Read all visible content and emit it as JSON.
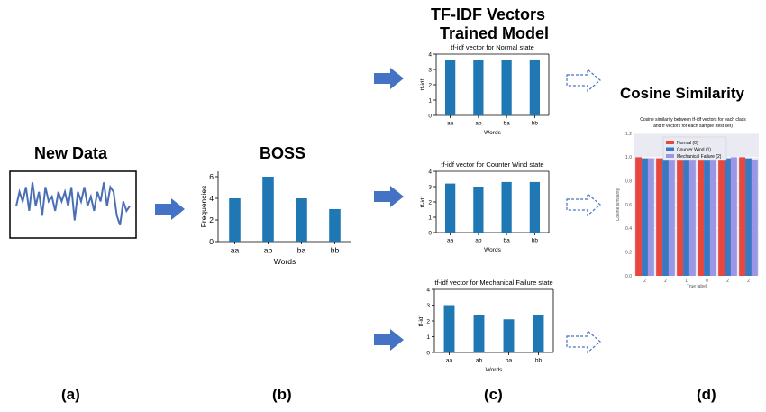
{
  "headings": {
    "new_data": "New Data",
    "boss": "BOSS",
    "tfidf_line1": "TF-IDF Vectors",
    "tfidf_line2": "Trained Model",
    "cosine": "Cosine Similarity"
  },
  "panel_labels": [
    "(a)",
    "(b)",
    "(c)",
    "(d)"
  ],
  "colors": {
    "arrow_fill": "#4472c4",
    "bar": "#1f77b4",
    "dashed_arrow": "#4472c4",
    "series_normal": "#e8473e",
    "series_counter": "#3b78c2",
    "series_mechanical": "#9b97e6"
  },
  "chart_data": [
    {
      "id": "new-data-signal",
      "type": "line",
      "values": [
        5,
        8,
        6,
        9,
        4,
        10,
        5,
        8,
        3,
        9,
        6,
        7,
        4,
        8,
        6,
        8,
        5,
        9,
        2,
        8,
        6,
        9,
        5,
        7,
        4,
        8,
        6,
        10,
        5,
        9,
        8,
        3,
        1,
        6,
        4,
        5
      ],
      "ylim": [
        0,
        11
      ]
    },
    {
      "id": "boss",
      "type": "bar",
      "title": "",
      "categories": [
        "aa",
        "ab",
        "ba",
        "bb"
      ],
      "values": [
        4,
        6,
        4,
        3
      ],
      "xlabel": "Words",
      "ylabel": "Frequencies",
      "ylim": [
        0,
        6.5
      ],
      "yticks": [
        "0",
        "2",
        "4",
        "6"
      ]
    },
    {
      "id": "tfidf-normal",
      "type": "bar",
      "title": "tf-idf vector for Normal state",
      "categories": [
        "aa",
        "ab",
        "ba",
        "bb"
      ],
      "values": [
        3.6,
        3.6,
        3.6,
        3.65
      ],
      "xlabel": "Words",
      "ylabel": "tf-idf",
      "ylim": [
        0,
        4
      ],
      "yticks": [
        "0",
        "1",
        "2",
        "3",
        "4"
      ]
    },
    {
      "id": "tfidf-counter",
      "type": "bar",
      "title": "tf-idf vector for Counter Wind state",
      "categories": [
        "aa",
        "ab",
        "ba",
        "bb"
      ],
      "values": [
        3.2,
        3.0,
        3.3,
        3.3
      ],
      "xlabel": "Words",
      "ylabel": "tf-idf",
      "ylim": [
        0,
        4
      ],
      "yticks": [
        "0",
        "1",
        "2",
        "3",
        "4"
      ]
    },
    {
      "id": "tfidf-mechanical",
      "type": "bar",
      "title": "tf-idf vector for Mechanical Failure state",
      "categories": [
        "aa",
        "ab",
        "ba",
        "bb"
      ],
      "values": [
        3.0,
        2.4,
        2.1,
        2.4
      ],
      "xlabel": "Words",
      "ylabel": "tf-idf",
      "ylim": [
        0,
        4
      ],
      "yticks": [
        "0",
        "1",
        "2",
        "3",
        "4"
      ]
    },
    {
      "id": "cosine",
      "type": "bar",
      "title_lines": [
        "Cosine similarity between tf-idf vectors for each class",
        "and tf vectors for each sample (test set)"
      ],
      "categories": [
        "2",
        "2",
        "1",
        "0",
        "2",
        "2"
      ],
      "xlabel": "True label",
      "ylabel": "Cosine similarity",
      "ylim": [
        0,
        1.2
      ],
      "yticks": [
        "0.0",
        "0.2",
        "0.4",
        "0.6",
        "0.8",
        "1.0",
        "1.2"
      ],
      "grid": true,
      "legend_position": "top-center",
      "series": [
        {
          "name": "Normal (0)",
          "values": [
            1.0,
            0.99,
            0.99,
            1.0,
            0.99,
            1.0
          ]
        },
        {
          "name": "Counter Wind (1)",
          "values": [
            0.99,
            0.99,
            1.0,
            0.99,
            0.99,
            0.99
          ]
        },
        {
          "name": "Mechanical Failure (2)",
          "values": [
            0.99,
            0.98,
            0.99,
            0.99,
            1.0,
            0.98
          ]
        }
      ]
    }
  ]
}
